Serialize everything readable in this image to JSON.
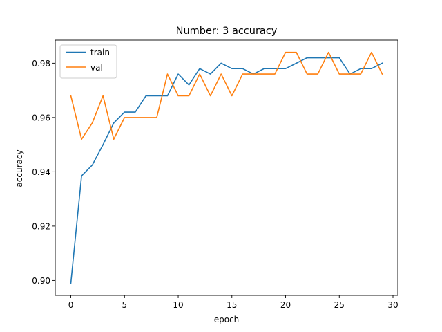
{
  "chart_data": {
    "type": "line",
    "title": "Number: 3 accuracy",
    "xlabel": "epoch",
    "ylabel": "accuracy",
    "xlim": [
      -1.45,
      30.45
    ],
    "ylim": [
      0.8945,
      0.9885
    ],
    "xticks": [
      0,
      5,
      10,
      15,
      20,
      25,
      30
    ],
    "yticks": [
      0.9,
      0.92,
      0.94,
      0.96,
      0.98
    ],
    "xtick_labels": [
      "0",
      "5",
      "10",
      "15",
      "20",
      "25",
      "30"
    ],
    "ytick_labels": [
      "0.90",
      "0.92",
      "0.94",
      "0.96",
      "0.98"
    ],
    "grid": false,
    "legend_position": "top-left",
    "x": [
      0,
      1,
      2,
      3,
      4,
      5,
      6,
      7,
      8,
      9,
      10,
      11,
      12,
      13,
      14,
      15,
      16,
      17,
      18,
      19,
      20,
      21,
      22,
      23,
      24,
      25,
      26,
      27,
      28,
      29
    ],
    "series": [
      {
        "name": "train",
        "color": "#1f77b4",
        "values": [
          0.899,
          0.9385,
          0.9425,
          0.95,
          0.958,
          0.962,
          0.962,
          0.968,
          0.968,
          0.968,
          0.976,
          0.972,
          0.978,
          0.976,
          0.98,
          0.978,
          0.978,
          0.976,
          0.978,
          0.978,
          0.978,
          0.98,
          0.982,
          0.982,
          0.982,
          0.982,
          0.976,
          0.978,
          0.978,
          0.98
        ]
      },
      {
        "name": "val",
        "color": "#ff7f0e",
        "values": [
          0.968,
          0.952,
          0.958,
          0.968,
          0.952,
          0.96,
          0.96,
          0.96,
          0.96,
          0.976,
          0.968,
          0.968,
          0.976,
          0.968,
          0.976,
          0.968,
          0.976,
          0.976,
          0.976,
          0.976,
          0.984,
          0.984,
          0.976,
          0.976,
          0.984,
          0.976,
          0.976,
          0.976,
          0.984,
          0.976
        ]
      }
    ]
  }
}
